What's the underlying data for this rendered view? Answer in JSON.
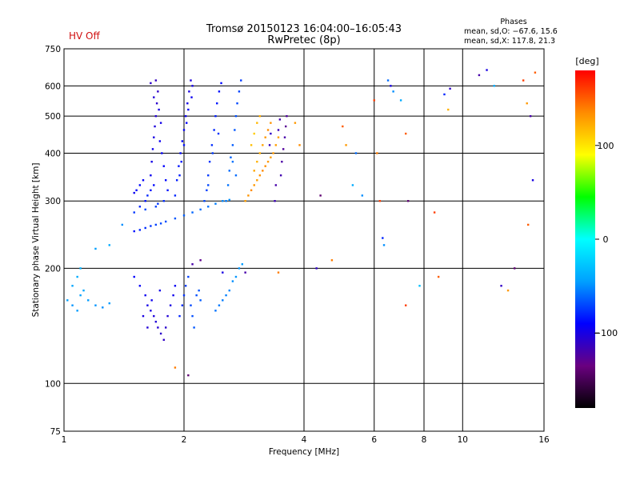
{
  "status": {
    "hv_label": "HV Off"
  },
  "header": {
    "title": "Tromsø 20150123 16:04:00–16:05:43",
    "subtitle": "RwPretec (8p)"
  },
  "stats": {
    "heading": "Phases",
    "line_o": "mean, sd,O: −67.6, 15.6",
    "line_x": "mean, sd,X: 117.8, 21.3"
  },
  "colorbar": {
    "unit": "[deg]",
    "ticks": [
      {
        "value": 100,
        "label": "100"
      },
      {
        "value": 0,
        "label": "0"
      },
      {
        "value": -100,
        "label": "−100"
      }
    ],
    "range": [
      -180,
      180
    ],
    "colormap": [
      "#000000",
      "#6a0080",
      "#0000ff",
      "#00a0ff",
      "#00ffff",
      "#00ff00",
      "#ffff00",
      "#ff8c00",
      "#ff0000"
    ]
  },
  "chart_data": {
    "type": "scatter",
    "xlabel": "Frequency [MHz]",
    "ylabel": "Stationary phase Virtual Height [km]",
    "xscale": "log",
    "yscale": "log",
    "xlim": [
      1,
      16
    ],
    "ylim": [
      75,
      750
    ],
    "xticks": [
      {
        "value": 1,
        "label": "1"
      },
      {
        "value": 2,
        "label": "2"
      },
      {
        "value": 4,
        "label": "4"
      },
      {
        "value": 6,
        "label": "6"
      },
      {
        "value": 8,
        "label": "8"
      },
      {
        "value": 10,
        "label": "10"
      },
      {
        "value": 16,
        "label": "16"
      }
    ],
    "xgrid": [
      2,
      4,
      6,
      8,
      10,
      16
    ],
    "yticks": [
      {
        "value": 75,
        "label": "75"
      },
      {
        "value": 100,
        "label": "100"
      },
      {
        "value": 200,
        "label": "200"
      },
      {
        "value": 300,
        "label": "300"
      },
      {
        "value": 400,
        "label": "400"
      },
      {
        "value": 500,
        "label": "500"
      },
      {
        "value": 600,
        "label": "600"
      },
      {
        "value": 750,
        "label": "750"
      }
    ],
    "ygrid": [
      100,
      200,
      300,
      400,
      500,
      600
    ],
    "grid": true,
    "color_value": "phase [deg]",
    "points": [
      [
        1.5,
        250,
        -85
      ],
      [
        1.55,
        252,
        -80
      ],
      [
        1.6,
        255,
        -78
      ],
      [
        1.65,
        258,
        -75
      ],
      [
        1.7,
        260,
        -72
      ],
      [
        1.75,
        262,
        -70
      ],
      [
        1.8,
        265,
        -68
      ],
      [
        1.9,
        270,
        -66
      ],
      [
        2.0,
        275,
        -64
      ],
      [
        2.1,
        280,
        -62
      ],
      [
        2.2,
        285,
        -60
      ],
      [
        2.3,
        290,
        -58
      ],
      [
        2.4,
        295,
        -55
      ],
      [
        2.5,
        300,
        -52
      ],
      [
        2.6,
        302,
        -50
      ],
      [
        1.5,
        315,
        -95
      ],
      [
        1.52,
        320,
        -90
      ],
      [
        1.55,
        330,
        -88
      ],
      [
        1.58,
        340,
        -92
      ],
      [
        1.6,
        300,
        -85
      ],
      [
        1.62,
        310,
        -80
      ],
      [
        1.65,
        320,
        -85
      ],
      [
        1.68,
        330,
        -88
      ],
      [
        1.5,
        280,
        -75
      ],
      [
        1.55,
        290,
        -80
      ],
      [
        1.6,
        285,
        -70
      ],
      [
        1.7,
        290,
        -72
      ],
      [
        1.72,
        295,
        -75
      ],
      [
        1.78,
        300,
        -78
      ],
      [
        1.65,
        350,
        -95
      ],
      [
        1.66,
        380,
        -98
      ],
      [
        1.67,
        410,
        -96
      ],
      [
        1.68,
        440,
        -100
      ],
      [
        1.69,
        470,
        -102
      ],
      [
        1.7,
        500,
        -105
      ],
      [
        1.71,
        540,
        -108
      ],
      [
        1.72,
        580,
        -110
      ],
      [
        1.7,
        620,
        -112
      ],
      [
        1.65,
        610,
        -108
      ],
      [
        1.68,
        560,
        -104
      ],
      [
        1.73,
        520,
        -100
      ],
      [
        1.75,
        480,
        -98
      ],
      [
        1.74,
        430,
        -95
      ],
      [
        1.76,
        400,
        -92
      ],
      [
        1.78,
        370,
        -90
      ],
      [
        1.8,
        340,
        -88
      ],
      [
        1.82,
        320,
        -85
      ],
      [
        1.9,
        310,
        -80
      ],
      [
        1.92,
        340,
        -82
      ],
      [
        1.94,
        370,
        -85
      ],
      [
        1.96,
        400,
        -88
      ],
      [
        1.98,
        430,
        -90
      ],
      [
        2.0,
        460,
        -92
      ],
      [
        2.02,
        500,
        -95
      ],
      [
        2.04,
        540,
        -98
      ],
      [
        2.06,
        580,
        -100
      ],
      [
        2.08,
        620,
        -102
      ],
      [
        2.1,
        600,
        -98
      ],
      [
        2.09,
        560,
        -95
      ],
      [
        2.05,
        520,
        -92
      ],
      [
        2.03,
        480,
        -90
      ],
      [
        2.0,
        420,
        -86
      ],
      [
        1.97,
        380,
        -84
      ],
      [
        1.95,
        350,
        -82
      ],
      [
        2.25,
        300,
        -70
      ],
      [
        2.28,
        320,
        -72
      ],
      [
        2.3,
        350,
        -74
      ],
      [
        2.32,
        380,
        -76
      ],
      [
        2.35,
        420,
        -78
      ],
      [
        2.38,
        460,
        -80
      ],
      [
        2.4,
        500,
        -82
      ],
      [
        2.42,
        540,
        -84
      ],
      [
        2.45,
        580,
        -86
      ],
      [
        2.48,
        610,
        -88
      ],
      [
        2.44,
        450,
        -76
      ],
      [
        2.36,
        400,
        -74
      ],
      [
        2.3,
        330,
        -70
      ],
      [
        2.55,
        300,
        -55
      ],
      [
        2.58,
        330,
        -58
      ],
      [
        2.6,
        360,
        -60
      ],
      [
        2.62,
        390,
        -62
      ],
      [
        2.65,
        420,
        -64
      ],
      [
        2.68,
        460,
        -66
      ],
      [
        2.7,
        500,
        -68
      ],
      [
        2.72,
        540,
        -70
      ],
      [
        2.75,
        580,
        -72
      ],
      [
        2.78,
        620,
        -74
      ],
      [
        2.7,
        350,
        -60
      ],
      [
        2.65,
        380,
        -58
      ],
      [
        2.85,
        300,
        128
      ],
      [
        2.9,
        310,
        132
      ],
      [
        2.95,
        320,
        135
      ],
      [
        3.0,
        330,
        130
      ],
      [
        3.05,
        340,
        128
      ],
      [
        3.1,
        350,
        132
      ],
      [
        3.15,
        360,
        136
      ],
      [
        3.2,
        370,
        134
      ],
      [
        3.25,
        380,
        130
      ],
      [
        3.3,
        390,
        128
      ],
      [
        3.0,
        360,
        125
      ],
      [
        3.05,
        380,
        120
      ],
      [
        3.1,
        400,
        122
      ],
      [
        3.15,
        420,
        126
      ],
      [
        3.2,
        440,
        130
      ],
      [
        3.25,
        460,
        135
      ],
      [
        3.3,
        480,
        132
      ],
      [
        2.95,
        420,
        115
      ],
      [
        3.0,
        450,
        110
      ],
      [
        3.05,
        480,
        118
      ],
      [
        3.1,
        500,
        122
      ],
      [
        3.35,
        400,
        130
      ],
      [
        3.4,
        420,
        128
      ],
      [
        3.45,
        440,
        126
      ],
      [
        3.5,
        350,
        -118
      ],
      [
        3.52,
        380,
        -122
      ],
      [
        3.55,
        410,
        -125
      ],
      [
        3.58,
        440,
        -120
      ],
      [
        3.6,
        470,
        -128
      ],
      [
        3.62,
        500,
        -124
      ],
      [
        3.45,
        460,
        -115
      ],
      [
        3.48,
        490,
        -118
      ],
      [
        3.4,
        330,
        -120
      ],
      [
        3.38,
        300,
        -116
      ],
      [
        3.3,
        450,
        -110
      ],
      [
        3.28,
        420,
        -112
      ],
      [
        1.5,
        190,
        -90
      ],
      [
        1.55,
        180,
        -92
      ],
      [
        1.6,
        170,
        -95
      ],
      [
        1.62,
        160,
        -98
      ],
      [
        1.65,
        155,
        -100
      ],
      [
        1.68,
        150,
        -102
      ],
      [
        1.7,
        145,
        -104
      ],
      [
        1.72,
        140,
        -106
      ],
      [
        1.75,
        135,
        -108
      ],
      [
        1.78,
        130,
        -110
      ],
      [
        1.8,
        140,
        -108
      ],
      [
        1.82,
        150,
        -104
      ],
      [
        1.85,
        160,
        -100
      ],
      [
        1.88,
        170,
        -96
      ],
      [
        1.9,
        180,
        -94
      ],
      [
        1.66,
        165,
        -96
      ],
      [
        1.74,
        175,
        -98
      ],
      [
        1.58,
        150,
        -100
      ],
      [
        1.62,
        140,
        -104
      ],
      [
        1.95,
        150,
        -80
      ],
      [
        1.98,
        160,
        -78
      ],
      [
        2.0,
        170,
        -76
      ],
      [
        2.02,
        180,
        -74
      ],
      [
        2.05,
        190,
        -72
      ],
      [
        2.08,
        160,
        -70
      ],
      [
        2.1,
        150,
        -68
      ],
      [
        2.12,
        140,
        -66
      ],
      [
        2.15,
        170,
        -68
      ],
      [
        2.18,
        175,
        -66
      ],
      [
        2.2,
        165,
        -64
      ],
      [
        2.4,
        155,
        -58
      ],
      [
        2.45,
        160,
        -56
      ],
      [
        2.5,
        165,
        -55
      ],
      [
        2.55,
        170,
        -54
      ],
      [
        2.6,
        175,
        -52
      ],
      [
        2.65,
        185,
        -50
      ],
      [
        2.7,
        190,
        -48
      ],
      [
        2.75,
        200,
        -48
      ],
      [
        2.8,
        205,
        -46
      ],
      [
        1.02,
        165,
        -45
      ],
      [
        1.05,
        160,
        -48
      ],
      [
        1.08,
        155,
        -46
      ],
      [
        1.1,
        170,
        -44
      ],
      [
        1.12,
        175,
        -42
      ],
      [
        1.15,
        165,
        -46
      ],
      [
        1.2,
        160,
        -48
      ],
      [
        1.25,
        158,
        -50
      ],
      [
        1.3,
        162,
        -46
      ],
      [
        1.08,
        190,
        -40
      ],
      [
        1.1,
        200,
        -38
      ],
      [
        1.05,
        180,
        -42
      ],
      [
        1.2,
        225,
        -45
      ],
      [
        1.3,
        230,
        -40
      ],
      [
        1.4,
        260,
        -50
      ],
      [
        2.05,
        105,
        -140
      ],
      [
        1.9,
        110,
        140
      ],
      [
        2.2,
        210,
        -130
      ],
      [
        2.1,
        205,
        -120
      ],
      [
        2.5,
        195,
        -100
      ],
      [
        2.85,
        195,
        -120
      ],
      [
        3.45,
        195,
        140
      ],
      [
        3.8,
        480,
        130
      ],
      [
        3.9,
        420,
        135
      ],
      [
        4.3,
        200,
        -110
      ],
      [
        4.4,
        310,
        -140
      ],
      [
        4.7,
        210,
        140
      ],
      [
        5.0,
        470,
        150
      ],
      [
        5.1,
        420,
        130
      ],
      [
        5.3,
        330,
        -40
      ],
      [
        5.4,
        400,
        -60
      ],
      [
        5.6,
        310,
        -50
      ],
      [
        6.0,
        550,
        160
      ],
      [
        6.1,
        400,
        140
      ],
      [
        6.2,
        300,
        160
      ],
      [
        6.3,
        240,
        -80
      ],
      [
        6.35,
        230,
        -50
      ],
      [
        6.5,
        620,
        -60
      ],
      [
        6.6,
        600,
        -100
      ],
      [
        6.7,
        580,
        -50
      ],
      [
        7.0,
        550,
        -40
      ],
      [
        7.2,
        450,
        150
      ],
      [
        7.3,
        300,
        -140
      ],
      [
        7.2,
        160,
        160
      ],
      [
        7.8,
        180,
        -30
      ],
      [
        8.5,
        280,
        160
      ],
      [
        8.7,
        190,
        150
      ],
      [
        9.0,
        570,
        -80
      ],
      [
        9.2,
        520,
        120
      ],
      [
        9.3,
        590,
        -110
      ],
      [
        11,
        640,
        -120
      ],
      [
        11.5,
        660,
        -100
      ],
      [
        12,
        600,
        -40
      ],
      [
        12.5,
        180,
        -110
      ],
      [
        13,
        175,
        130
      ],
      [
        13.5,
        200,
        -140
      ],
      [
        14.2,
        620,
        160
      ],
      [
        14.5,
        540,
        130
      ],
      [
        14.8,
        500,
        -120
      ],
      [
        15,
        340,
        -100
      ],
      [
        14.6,
        260,
        150
      ],
      [
        15.2,
        650,
        150
      ]
    ]
  }
}
